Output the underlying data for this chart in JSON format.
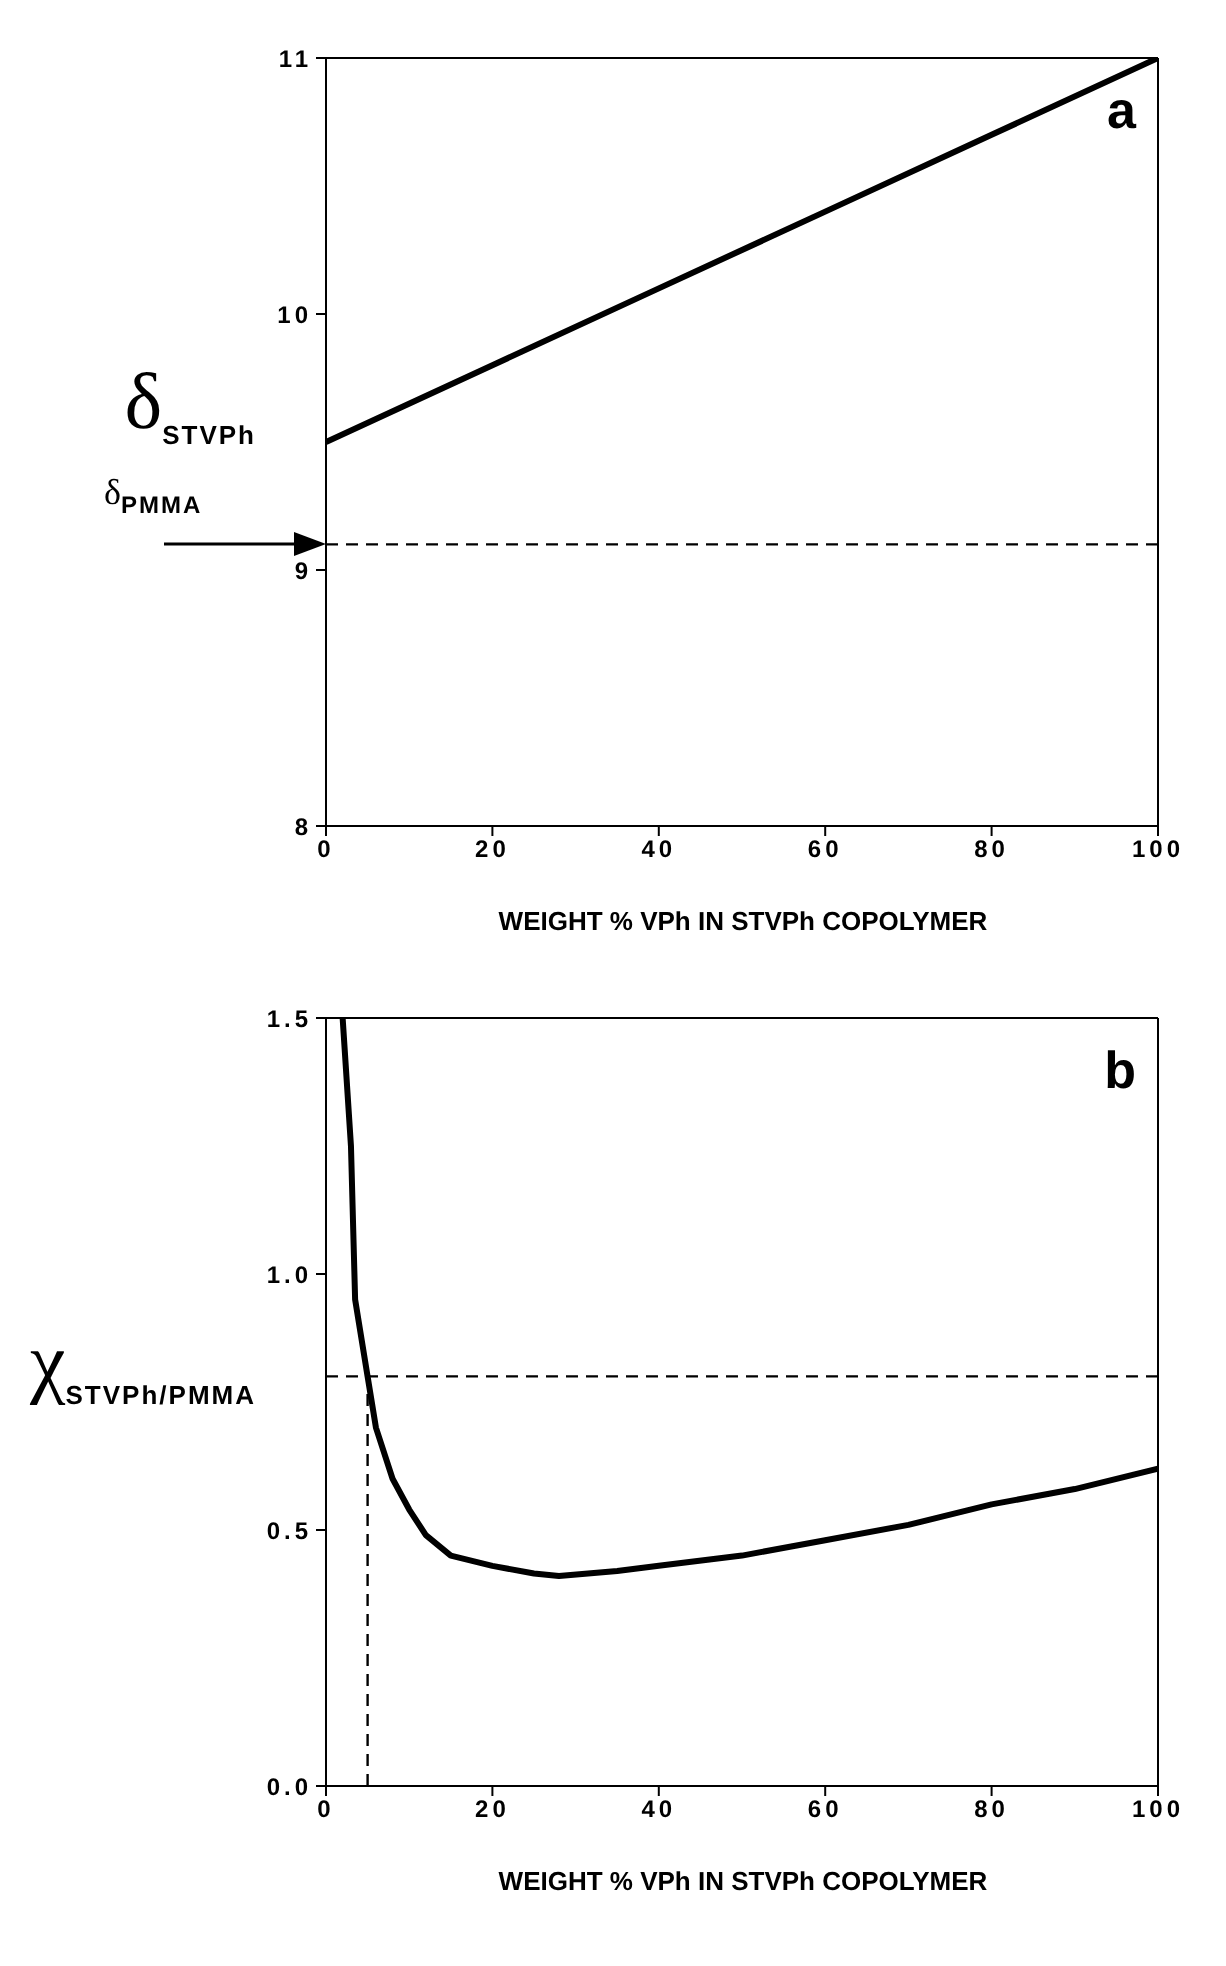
{
  "chart_data": [
    {
      "type": "line",
      "xlabel": "WEIGHT % VPh IN STVPh COPOLYMER",
      "ylabel": "δ$_{STVPh}$",
      "annotations": [
        "a"
      ],
      "xlim": [
        0,
        100
      ],
      "ylim": [
        8,
        11
      ],
      "xticks": [
        0,
        20,
        40,
        60,
        80,
        100
      ],
      "yticks": [
        8,
        9,
        10,
        11
      ],
      "marker": "none",
      "series": [
        {
          "color": "#000000",
          "x": [
            0,
            20,
            40,
            60,
            80,
            100
          ],
          "values": [
            9.5,
            9.8,
            10.1,
            10.4,
            10.7,
            11.0
          ]
        }
      ],
      "ref_lines": [
        {
          "axis": "y",
          "value": 9.1,
          "label": "δ$_{PMMA}$",
          "color": "#000000",
          "line_style": "dashed"
        }
      ]
    },
    {
      "type": "line",
      "xlabel": "WEIGHT % VPh IN STVPh COPOLYMER",
      "ylabel": "χ$_{STVPh/PMMA}$",
      "annotations": [
        "b"
      ],
      "xlim": [
        0,
        100
      ],
      "ylim": [
        0,
        1.5
      ],
      "xticks": [
        0,
        20,
        40,
        60,
        80,
        100
      ],
      "yticks": [
        {
          "value": 0,
          "label": "0.0"
        },
        {
          "value": 0.5,
          "label": "0.5"
        },
        {
          "value": 1,
          "label": "1.0"
        },
        {
          "value": 1.5,
          "label": "1.5"
        }
      ],
      "marker": "none",
      "series": [
        {
          "color": "#000000",
          "x": [
            2,
            3,
            3.5,
            5,
            6,
            8,
            10,
            12,
            15,
            20,
            25,
            28,
            35,
            40,
            50,
            60,
            70,
            80,
            90,
            100
          ],
          "values": [
            1.5,
            1.25,
            0.95,
            0.8,
            0.7,
            0.6,
            0.54,
            0.49,
            0.45,
            0.43,
            0.415,
            0.41,
            0.42,
            0.43,
            0.45,
            0.48,
            0.51,
            0.55,
            0.58,
            0.62
          ]
        },
        {
          "type": "line",
          "color": "#000000",
          "line_style": "dashed",
          "x": [
            5,
            5
          ],
          "values": [
            0,
            0.8
          ]
        }
      ],
      "ref_lines": [
        {
          "axis": "y",
          "value": 0.8,
          "color": "#000000",
          "line_style": "dashed"
        }
      ]
    }
  ]
}
